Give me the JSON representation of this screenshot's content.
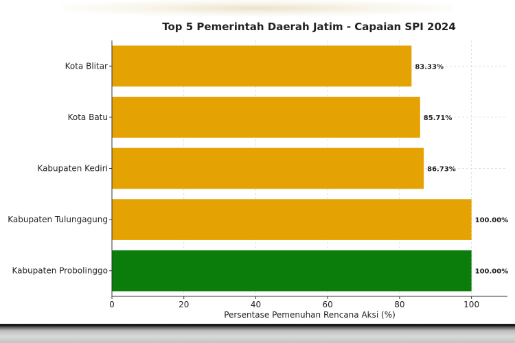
{
  "chart_data": {
    "type": "bar",
    "orientation": "horizontal",
    "title": "Top 5 Pemerintah Daerah Jatim - Capaian SPI 2024",
    "xlabel": "Persentase Pemenuhan Rencana Aksi (%)",
    "ylabel": "",
    "xlim": [
      0,
      110
    ],
    "xticks": [
      0,
      20,
      40,
      60,
      80,
      100
    ],
    "grid": true,
    "categories": [
      "Kota Blitar",
      "Kota Batu",
      "Kabupaten Kediri",
      "Kabupaten Tulungagung",
      "Kabupaten Probolinggo"
    ],
    "values": [
      83.33,
      85.71,
      86.73,
      100.0,
      100.0
    ],
    "value_labels": [
      "83.33%",
      "85.71%",
      "86.73%",
      "100.00%",
      "100.00%"
    ],
    "colors": [
      "#E5A203",
      "#E5A203",
      "#E5A203",
      "#E5A203",
      "#0A7D0A"
    ]
  },
  "colors": {
    "grid": "#d6d6d6",
    "axis": "#333333",
    "text": "#222222"
  }
}
